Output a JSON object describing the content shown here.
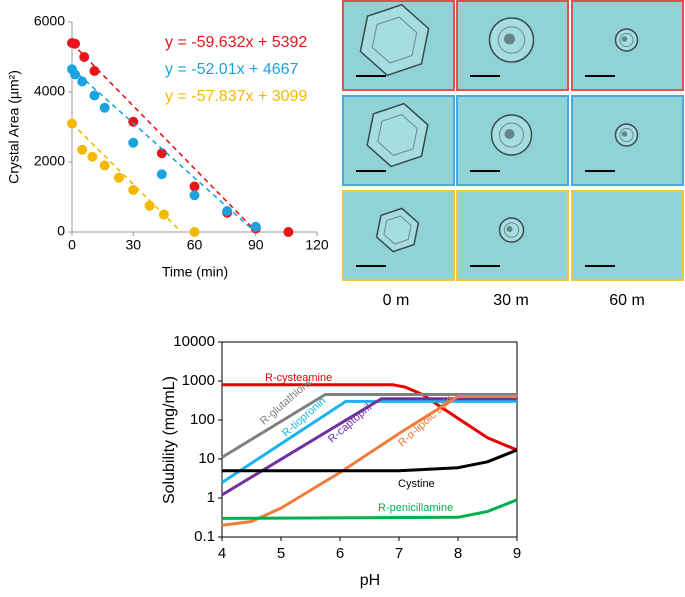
{
  "chart_data": [
    {
      "type": "scatter",
      "xlabel": "Time (min)",
      "ylabel": "Crystal Area (µm²)",
      "xlim": [
        0,
        120
      ],
      "xticks": [
        0,
        30,
        60,
        90,
        120
      ],
      "ylim": [
        0,
        6000
      ],
      "yticks": [
        0,
        2000,
        4000,
        6000
      ],
      "series": [
        {
          "color": "#e8141c",
          "x": [
            0,
            1.5,
            6,
            11,
            30,
            44,
            60,
            76,
            90,
            106
          ],
          "values": [
            5400,
            5380,
            5000,
            4600,
            3150,
            2250,
            1300,
            550,
            100,
            0
          ],
          "trendline": {
            "label": "y = -59.632x + 5392",
            "slope": -59.632,
            "intercept": 5392
          }
        },
        {
          "color": "#1ba3e0",
          "x": [
            0,
            1.5,
            5,
            11,
            16,
            30,
            44,
            60,
            76,
            90
          ],
          "values": [
            4650,
            4500,
            4300,
            3900,
            3550,
            2550,
            1650,
            1050,
            600,
            150
          ],
          "trendline": {
            "label": "y = -52.01x + 4667",
            "slope": -52.01,
            "intercept": 4667
          }
        },
        {
          "color": "#f5b800",
          "x": [
            0,
            5,
            10,
            16,
            23,
            30,
            38,
            45,
            60
          ],
          "values": [
            3100,
            2350,
            2150,
            1900,
            1550,
            1200,
            750,
            500,
            0
          ],
          "trendline": {
            "label": "y = -57.837x + 3099",
            "slope": -57.837,
            "intercept": 3099
          }
        }
      ]
    },
    {
      "type": "line",
      "xlabel": "pH",
      "ylabel": "Solubility (mg/mL)",
      "xlim": [
        4,
        9
      ],
      "xticks": [
        4,
        5,
        6,
        7,
        8,
        9
      ],
      "ylim": [
        0.1,
        10000
      ],
      "yticks": [
        0.1,
        1,
        10,
        100,
        1000,
        10000
      ],
      "log_y": true,
      "series": [
        {
          "name": "R-cysteamine",
          "color": "#e60000",
          "x": [
            4,
            6.9,
            7.1,
            7.4,
            7.7,
            8,
            8.5,
            9
          ],
          "values": [
            800,
            800,
            700,
            450,
            220,
            110,
            35,
            17
          ]
        },
        {
          "name": "R-glutathione",
          "color": "#808080",
          "x": [
            4,
            5.75,
            9
          ],
          "values": [
            11,
            450,
            450
          ]
        },
        {
          "name": "R-tiopronin",
          "color": "#19b4f0",
          "x": [
            4,
            6.1,
            9
          ],
          "values": [
            2.5,
            300,
            300
          ]
        },
        {
          "name": "R-captopril",
          "color": "#7030a0",
          "x": [
            4,
            6.7,
            9
          ],
          "values": [
            1.2,
            350,
            350
          ]
        },
        {
          "name": "R-α-lipoic acid",
          "color": "#f07c3c",
          "x": [
            4,
            4.5,
            5,
            6,
            7,
            8,
            9
          ],
          "values": [
            0.2,
            0.25,
            0.55,
            4.5,
            45,
            400,
            400
          ]
        },
        {
          "name": "Cystine",
          "color": "#000000",
          "x": [
            4,
            7,
            8,
            8.5,
            9
          ],
          "values": [
            5,
            5,
            6,
            8.5,
            17
          ]
        },
        {
          "name": "R-penicillamine",
          "color": "#00b050",
          "x": [
            4,
            8,
            8.5,
            9
          ],
          "values": [
            0.3,
            0.32,
            0.45,
            0.9
          ]
        }
      ]
    }
  ],
  "image_grid": {
    "columns": [
      "0 m",
      "30 m",
      "60 m"
    ]
  }
}
